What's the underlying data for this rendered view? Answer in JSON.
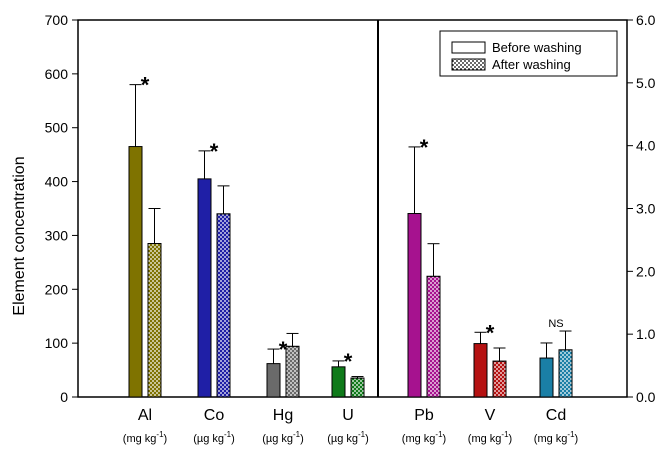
{
  "chart_data": {
    "type": "bar",
    "ylabel": "Element concentration",
    "left_axis": {
      "ylim": [
        0,
        700
      ],
      "ticks": [
        "0",
        "100",
        "200",
        "300",
        "400",
        "500",
        "600",
        "700"
      ]
    },
    "right_axis": {
      "ylim": [
        0,
        6.0
      ],
      "ticks": [
        "0.0",
        "1.0",
        "2.0",
        "3.0",
        "4.0",
        "5.0",
        "6.0"
      ]
    },
    "legend": {
      "placement": "top-right",
      "entries": [
        {
          "label": "Before washing",
          "pattern": "solid"
        },
        {
          "label": "After washing",
          "pattern": "dotted"
        }
      ]
    },
    "categories": [
      {
        "name": "Al",
        "unit_base": "(mg kg",
        "unit_sup": "-1",
        "unit_close": ")",
        "axis": "left",
        "before": 465,
        "before_err": 115,
        "after": 285,
        "after_err": 65,
        "sig": "*",
        "color": "#7f7300"
      },
      {
        "name": "Co",
        "unit_base": "(µg kg",
        "unit_sup": "-1",
        "unit_close": ")",
        "axis": "left",
        "before": 405,
        "before_err": 52,
        "after": 340,
        "after_err": 52,
        "sig": "*",
        "color": "#1f1fa6"
      },
      {
        "name": "Hg",
        "unit_base": "(µg kg",
        "unit_sup": "-1",
        "unit_close": ")",
        "axis": "left",
        "before": 62,
        "before_err": 27,
        "after": 94,
        "after_err": 24,
        "sig": "*",
        "color": "#6a6a6a"
      },
      {
        "name": "U",
        "unit_base": "(µg kg",
        "unit_sup": "-1",
        "unit_close": ")",
        "axis": "left",
        "before": 56,
        "before_err": 11,
        "after": 35,
        "after_err": 3,
        "sig": "*",
        "color": "#0f7a1a"
      },
      {
        "name": "Pb",
        "unit_base": "(mg kg",
        "unit_sup": "-1",
        "unit_close": ")",
        "axis": "right",
        "before": 2.92,
        "before_err": 1.06,
        "after": 1.92,
        "after_err": 0.52,
        "sig": "*",
        "color": "#a6128f"
      },
      {
        "name": "V",
        "unit_base": "(mg kg",
        "unit_sup": "-1",
        "unit_close": ")",
        "axis": "right",
        "before": 0.85,
        "before_err": 0.18,
        "after": 0.57,
        "after_err": 0.21,
        "sig": "*",
        "color": "#b51212"
      },
      {
        "name": "Cd",
        "unit_base": "(mg kg",
        "unit_sup": "-1",
        "unit_close": ")",
        "axis": "right",
        "before": 0.62,
        "before_err": 0.24,
        "after": 0.75,
        "after_err": 0.3,
        "sig": "NS",
        "color": "#1a7fa6"
      }
    ]
  }
}
